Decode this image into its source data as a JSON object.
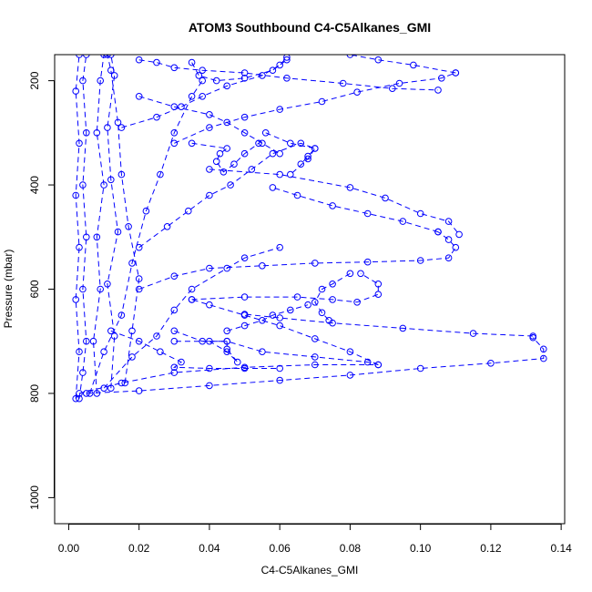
{
  "chart_data": {
    "type": "scatter",
    "title": "ATOM3 Southbound C4-C5Alkanes_GMI",
    "xlabel": "C4-C5Alkanes_GMI",
    "ylabel": "Pressure (mbar)",
    "xlim": [
      -0.004,
      0.141
    ],
    "ylim": [
      1050,
      150
    ],
    "y_reversed": true,
    "x_ticks": [
      "0.00",
      "0.02",
      "0.04",
      "0.06",
      "0.08",
      "0.10",
      "0.12",
      "0.14"
    ],
    "x_tick_values": [
      0.0,
      0.02,
      0.04,
      0.06,
      0.08,
      0.1,
      0.12,
      0.14
    ],
    "y_ticks": [
      "200",
      "400",
      "600",
      "800",
      "1000"
    ],
    "y_tick_values": [
      200,
      400,
      600,
      800,
      1000
    ],
    "grid": false,
    "legend": "none",
    "marker": "open-circle",
    "line_style": "dashed",
    "color": "#0000ff",
    "series": [
      {
        "values": [
          [
            0.003,
            810
          ],
          [
            0.004,
            760
          ],
          [
            0.005,
            700
          ],
          [
            0.004,
            600
          ],
          [
            0.005,
            500
          ],
          [
            0.004,
            400
          ],
          [
            0.005,
            300
          ],
          [
            0.004,
            200
          ],
          [
            0.005,
            150
          ]
        ]
      },
      {
        "values": [
          [
            0.002,
            810
          ],
          [
            0.003,
            720
          ],
          [
            0.002,
            620
          ],
          [
            0.003,
            520
          ],
          [
            0.002,
            420
          ],
          [
            0.003,
            320
          ],
          [
            0.002,
            220
          ],
          [
            0.003,
            150
          ]
        ]
      },
      {
        "values": [
          [
            0.008,
            800
          ],
          [
            0.007,
            700
          ],
          [
            0.009,
            600
          ],
          [
            0.008,
            500
          ],
          [
            0.01,
            400
          ],
          [
            0.008,
            300
          ],
          [
            0.009,
            200
          ],
          [
            0.01,
            150
          ]
        ]
      },
      {
        "values": [
          [
            0.012,
            790
          ],
          [
            0.013,
            690
          ],
          [
            0.011,
            590
          ],
          [
            0.014,
            490
          ],
          [
            0.012,
            390
          ],
          [
            0.011,
            290
          ],
          [
            0.013,
            190
          ],
          [
            0.012,
            150
          ]
        ]
      },
      {
        "values": [
          [
            0.016,
            780
          ],
          [
            0.018,
            680
          ],
          [
            0.02,
            580
          ],
          [
            0.017,
            480
          ],
          [
            0.015,
            380
          ],
          [
            0.014,
            280
          ],
          [
            0.012,
            180
          ],
          [
            0.011,
            150
          ]
        ]
      },
      {
        "values": [
          [
            0.006,
            800
          ],
          [
            0.01,
            720
          ],
          [
            0.015,
            650
          ],
          [
            0.018,
            550
          ],
          [
            0.022,
            450
          ],
          [
            0.026,
            380
          ],
          [
            0.03,
            300
          ],
          [
            0.035,
            230
          ],
          [
            0.038,
            200
          ]
        ]
      },
      {
        "values": [
          [
            0.01,
            790
          ],
          [
            0.018,
            730
          ],
          [
            0.025,
            690
          ],
          [
            0.03,
            640
          ],
          [
            0.035,
            600
          ],
          [
            0.045,
            560
          ],
          [
            0.05,
            540
          ],
          [
            0.06,
            520
          ]
        ]
      },
      {
        "values": [
          [
            0.003,
            800
          ],
          [
            0.015,
            780
          ],
          [
            0.03,
            760
          ],
          [
            0.05,
            750
          ],
          [
            0.07,
            745
          ],
          [
            0.088,
            745
          ],
          [
            0.085,
            740
          ],
          [
            0.07,
            730
          ],
          [
            0.055,
            720
          ],
          [
            0.045,
            700
          ],
          [
            0.03,
            700
          ]
        ]
      },
      {
        "values": [
          [
            0.005,
            800
          ],
          [
            0.02,
            795
          ],
          [
            0.04,
            785
          ],
          [
            0.06,
            775
          ],
          [
            0.08,
            765
          ],
          [
            0.1,
            752
          ],
          [
            0.12,
            742
          ],
          [
            0.135,
            733
          ],
          [
            0.135,
            715
          ],
          [
            0.132,
            693
          ]
        ]
      },
      {
        "values": [
          [
            0.132,
            690
          ],
          [
            0.115,
            685
          ],
          [
            0.095,
            675
          ],
          [
            0.075,
            665
          ],
          [
            0.06,
            655
          ],
          [
            0.05,
            648
          ]
        ]
      },
      {
        "values": [
          [
            0.088,
            745
          ],
          [
            0.08,
            720
          ],
          [
            0.07,
            695
          ],
          [
            0.06,
            670
          ],
          [
            0.05,
            650
          ],
          [
            0.04,
            630
          ],
          [
            0.035,
            620
          ]
        ]
      },
      {
        "values": [
          [
            0.035,
            620
          ],
          [
            0.05,
            615
          ],
          [
            0.065,
            615
          ],
          [
            0.075,
            620
          ],
          [
            0.082,
            625
          ],
          [
            0.088,
            610
          ],
          [
            0.088,
            590
          ],
          [
            0.083,
            570
          ]
        ]
      },
      {
        "values": [
          [
            0.03,
            680
          ],
          [
            0.038,
            700
          ],
          [
            0.045,
            700
          ],
          [
            0.045,
            715
          ],
          [
            0.048,
            740
          ],
          [
            0.045,
            720
          ],
          [
            0.04,
            700
          ]
        ]
      },
      {
        "values": [
          [
            0.012,
            680
          ],
          [
            0.02,
            700
          ],
          [
            0.026,
            720
          ],
          [
            0.032,
            740
          ],
          [
            0.03,
            750
          ],
          [
            0.04,
            752
          ],
          [
            0.05,
            752
          ],
          [
            0.06,
            752
          ]
        ]
      },
      {
        "values": [
          [
            0.02,
            600
          ],
          [
            0.03,
            575
          ],
          [
            0.04,
            560
          ],
          [
            0.055,
            555
          ],
          [
            0.07,
            550
          ],
          [
            0.085,
            548
          ],
          [
            0.1,
            545
          ],
          [
            0.108,
            540
          ],
          [
            0.11,
            520
          ],
          [
            0.108,
            505
          ],
          [
            0.105,
            490
          ]
        ]
      },
      {
        "values": [
          [
            0.105,
            490
          ],
          [
            0.095,
            470
          ],
          [
            0.085,
            455
          ],
          [
            0.075,
            440
          ],
          [
            0.065,
            420
          ],
          [
            0.058,
            405
          ]
        ]
      },
      {
        "values": [
          [
            0.02,
            520
          ],
          [
            0.028,
            480
          ],
          [
            0.034,
            450
          ],
          [
            0.04,
            420
          ],
          [
            0.046,
            400
          ],
          [
            0.052,
            370
          ],
          [
            0.058,
            340
          ],
          [
            0.066,
            320
          ],
          [
            0.07,
            330
          ],
          [
            0.068,
            350
          ],
          [
            0.063,
            380
          ]
        ]
      },
      {
        "values": [
          [
            0.04,
            370
          ],
          [
            0.06,
            380
          ],
          [
            0.08,
            405
          ],
          [
            0.09,
            425
          ],
          [
            0.1,
            455
          ],
          [
            0.108,
            470
          ],
          [
            0.111,
            495
          ]
        ]
      },
      {
        "values": [
          [
            0.03,
            320
          ],
          [
            0.04,
            290
          ],
          [
            0.05,
            270
          ],
          [
            0.06,
            255
          ],
          [
            0.072,
            240
          ],
          [
            0.082,
            222
          ],
          [
            0.094,
            205
          ],
          [
            0.106,
            195
          ],
          [
            0.11,
            185
          ]
        ]
      },
      {
        "values": [
          [
            0.11,
            185
          ],
          [
            0.098,
            170
          ],
          [
            0.088,
            160
          ],
          [
            0.08,
            150
          ]
        ]
      },
      {
        "values": [
          [
            0.035,
            320
          ],
          [
            0.045,
            330
          ],
          [
            0.043,
            340
          ],
          [
            0.042,
            355
          ],
          [
            0.044,
            375
          ],
          [
            0.047,
            360
          ],
          [
            0.05,
            340
          ],
          [
            0.054,
            320
          ]
        ]
      },
      {
        "values": [
          [
            0.015,
            290
          ],
          [
            0.025,
            270
          ],
          [
            0.032,
            250
          ],
          [
            0.038,
            230
          ],
          [
            0.045,
            210
          ],
          [
            0.055,
            190
          ],
          [
            0.06,
            170
          ],
          [
            0.062,
            155
          ]
        ]
      },
      {
        "values": [
          [
            0.056,
            300
          ],
          [
            0.063,
            320
          ],
          [
            0.07,
            330
          ],
          [
            0.068,
            345
          ],
          [
            0.066,
            360
          ]
        ]
      },
      {
        "values": [
          [
            0.02,
            230
          ],
          [
            0.03,
            250
          ],
          [
            0.04,
            265
          ],
          [
            0.045,
            280
          ],
          [
            0.05,
            300
          ],
          [
            0.055,
            320
          ],
          [
            0.06,
            340
          ]
        ]
      },
      {
        "values": [
          [
            0.02,
            160
          ],
          [
            0.025,
            165
          ],
          [
            0.03,
            175
          ],
          [
            0.038,
            180
          ],
          [
            0.05,
            185
          ],
          [
            0.062,
            195
          ],
          [
            0.078,
            205
          ],
          [
            0.092,
            215
          ],
          [
            0.105,
            218
          ]
        ]
      },
      {
        "values": [
          [
            0.035,
            165
          ],
          [
            0.037,
            190
          ],
          [
            0.042,
            200
          ],
          [
            0.05,
            195
          ],
          [
            0.058,
            180
          ],
          [
            0.062,
            160
          ]
        ]
      },
      {
        "values": [
          [
            0.08,
            570
          ],
          [
            0.075,
            590
          ],
          [
            0.072,
            600
          ],
          [
            0.07,
            625
          ],
          [
            0.072,
            645
          ],
          [
            0.074,
            660
          ]
        ]
      },
      {
        "values": [
          [
            0.045,
            680
          ],
          [
            0.05,
            670
          ],
          [
            0.055,
            660
          ],
          [
            0.058,
            650
          ],
          [
            0.063,
            640
          ],
          [
            0.068,
            630
          ]
        ]
      }
    ]
  }
}
